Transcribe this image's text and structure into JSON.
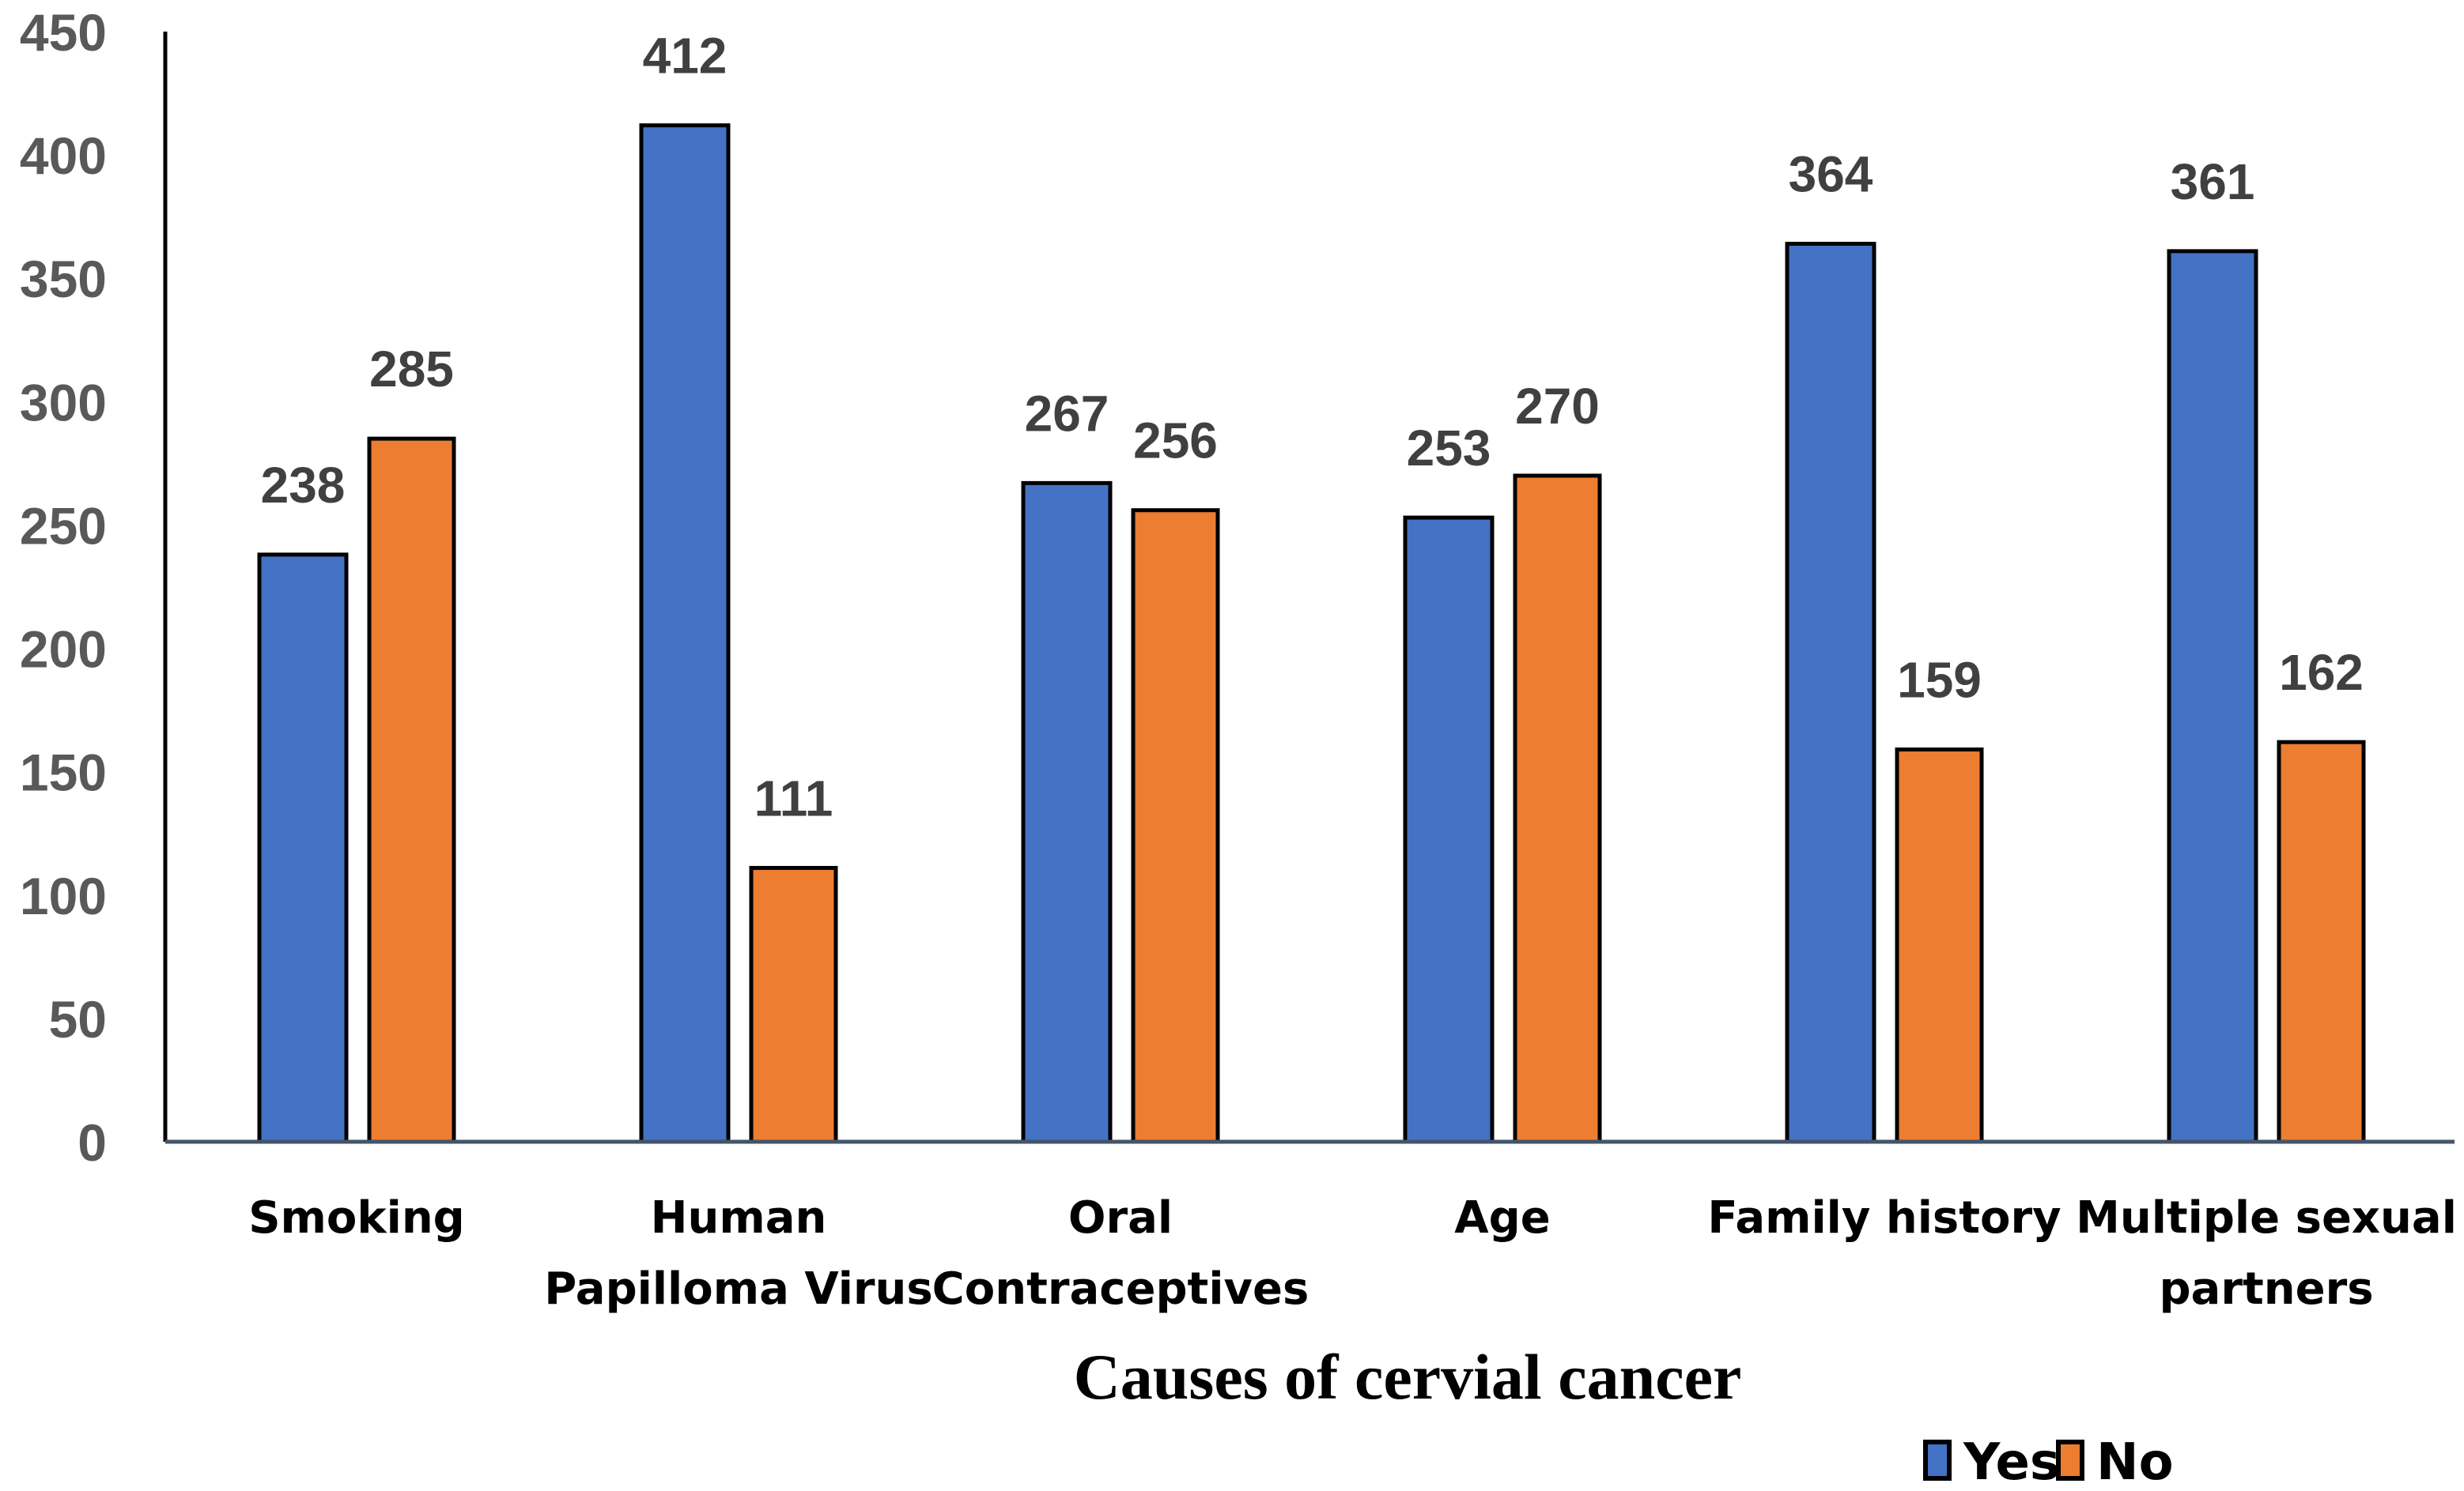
{
  "chart_data": {
    "type": "bar",
    "title": "",
    "xlabel": "Causes of cervial cancer",
    "ylabel": "",
    "ylim": [
      0,
      450
    ],
    "yticks": [
      0,
      50,
      100,
      150,
      200,
      250,
      300,
      350,
      400,
      450
    ],
    "categories": [
      [
        "Smoking"
      ],
      [
        "Human",
        "Papilloma Virus"
      ],
      [
        "Oral",
        "Contraceptives"
      ],
      [
        "Age"
      ],
      [
        "Family history"
      ],
      [
        "Multiple sexual",
        "partners"
      ]
    ],
    "series": [
      {
        "name": "Yes",
        "color": "#4472C4",
        "values": [
          238,
          412,
          267,
          253,
          364,
          361
        ]
      },
      {
        "name": "No",
        "color": "#ED7D31",
        "values": [
          285,
          111,
          256,
          270,
          159,
          162
        ]
      }
    ],
    "grid": false,
    "legend_position": "bottom-right",
    "data_labels": true
  }
}
